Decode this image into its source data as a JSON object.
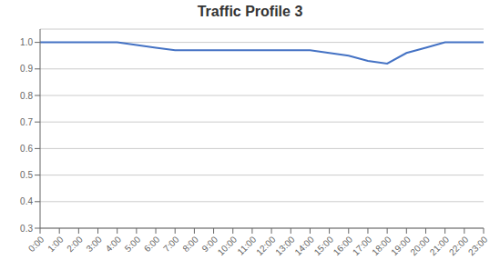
{
  "chart_data": {
    "type": "line",
    "title": "Traffic Profile 3",
    "categories": [
      "0:00",
      "1:00",
      "2:00",
      "3:00",
      "4:00",
      "5:00",
      "6:00",
      "7:00",
      "8:00",
      "9:00",
      "10:00",
      "11:00",
      "12:00",
      "13:00",
      "14:00",
      "15:00",
      "16:00",
      "17:00",
      "18:00",
      "19:00",
      "20:00",
      "21:00",
      "22:00",
      "23:00"
    ],
    "values": [
      1.0,
      1.0,
      1.0,
      1.0,
      1.0,
      0.99,
      0.98,
      0.97,
      0.97,
      0.97,
      0.97,
      0.97,
      0.97,
      0.97,
      0.97,
      0.96,
      0.95,
      0.93,
      0.92,
      0.96,
      0.98,
      1.0,
      1.0,
      1.0
    ],
    "color": "#4472C4",
    "ylim": [
      0.3,
      1.05
    ],
    "yticks": [
      0.3,
      0.4,
      0.5,
      0.6,
      0.7,
      0.8,
      0.9,
      {
        "value": 1,
        "label": "1.0"
      }
    ],
    "grid": true
  }
}
